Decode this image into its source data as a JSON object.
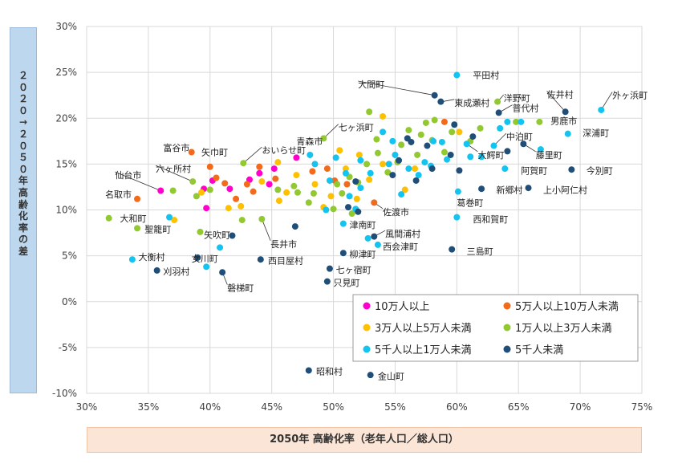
{
  "chart_data": {
    "type": "scatter",
    "xlabel": "2050年 高齢化率（老年人口／総人口）",
    "ylabel": "２０２０→２０５０年 高齢化率の差",
    "xlim": [
      0.3,
      0.75
    ],
    "ylim": [
      -0.1,
      0.3
    ],
    "x_ticks": [
      0.3,
      0.35,
      0.4,
      0.45,
      0.5,
      0.55,
      0.6,
      0.65,
      0.7,
      0.75
    ],
    "y_ticks": [
      -0.1,
      -0.05,
      0.0,
      0.05,
      0.1,
      0.15,
      0.2,
      0.25,
      0.3
    ],
    "x_tick_labels": [
      "30%",
      "35%",
      "40%",
      "45%",
      "50%",
      "55%",
      "60%",
      "65%",
      "70%",
      "75%"
    ],
    "y_tick_labels": [
      "-10%",
      "-5%",
      "0%",
      "5%",
      "10%",
      "15%",
      "20%",
      "25%",
      "30%"
    ],
    "grid": "horizontal and vertical",
    "legend_position": "lower-right inside plot",
    "series": [
      {
        "name": "10万人以上",
        "color": "#ff00cc",
        "points": [
          [
            0.36,
            0.121
          ],
          [
            0.397,
            0.102
          ],
          [
            0.432,
            0.133
          ],
          [
            0.44,
            0.14
          ],
          [
            0.452,
            0.145
          ],
          [
            0.448,
            0.128
          ],
          [
            0.402,
            0.132
          ],
          [
            0.416,
            0.123
          ],
          [
            0.395,
            0.123
          ],
          [
            0.47,
            0.157
          ]
        ]
      },
      {
        "name": "5万人以上10万人未満",
        "color": "#f26a1b",
        "points": [
          [
            0.341,
            0.112
          ],
          [
            0.385,
            0.163
          ],
          [
            0.4,
            0.147
          ],
          [
            0.405,
            0.135
          ],
          [
            0.412,
            0.129
          ],
          [
            0.44,
            0.147
          ],
          [
            0.453,
            0.134
          ],
          [
            0.435,
            0.12
          ],
          [
            0.483,
            0.142
          ],
          [
            0.495,
            0.145
          ],
          [
            0.501,
            0.132
          ],
          [
            0.511,
            0.128
          ],
          [
            0.533,
            0.108
          ],
          [
            0.59,
            0.196
          ],
          [
            0.43,
            0.128
          ],
          [
            0.421,
            0.112
          ]
        ]
      },
      {
        "name": "3万人以上5万人未満",
        "color": "#ffc000",
        "points": [
          [
            0.371,
            0.089
          ],
          [
            0.393,
            0.119
          ],
          [
            0.425,
            0.104
          ],
          [
            0.442,
            0.131
          ],
          [
            0.455,
            0.152
          ],
          [
            0.47,
            0.138
          ],
          [
            0.485,
            0.128
          ],
          [
            0.498,
            0.115
          ],
          [
            0.505,
            0.165
          ],
          [
            0.51,
            0.145
          ],
          [
            0.521,
            0.16
          ],
          [
            0.529,
            0.133
          ],
          [
            0.54,
            0.202
          ],
          [
            0.54,
            0.15
          ],
          [
            0.558,
            0.122
          ],
          [
            0.566,
            0.145
          ],
          [
            0.602,
            0.185
          ],
          [
            0.415,
            0.102
          ],
          [
            0.462,
            0.119
          ],
          [
            0.492,
            0.103
          ],
          [
            0.519,
            0.112
          ],
          [
            0.456,
            0.11
          ]
        ]
      },
      {
        "name": "1万人以上3万人未満",
        "color": "#92c830",
        "points": [
          [
            0.318,
            0.091
          ],
          [
            0.341,
            0.08
          ],
          [
            0.37,
            0.121
          ],
          [
            0.386,
            0.131
          ],
          [
            0.389,
            0.115
          ],
          [
            0.4,
            0.122
          ],
          [
            0.392,
            0.076
          ],
          [
            0.426,
            0.089
          ],
          [
            0.442,
            0.09
          ],
          [
            0.427,
            0.151
          ],
          [
            0.455,
            0.122
          ],
          [
            0.468,
            0.126
          ],
          [
            0.48,
            0.108
          ],
          [
            0.492,
            0.178
          ],
          [
            0.5,
            0.101
          ],
          [
            0.507,
            0.118
          ],
          [
            0.513,
            0.136
          ],
          [
            0.52,
            0.13
          ],
          [
            0.527,
            0.15
          ],
          [
            0.529,
            0.207
          ],
          [
            0.536,
            0.162
          ],
          [
            0.544,
            0.141
          ],
          [
            0.552,
            0.152
          ],
          [
            0.555,
            0.171
          ],
          [
            0.561,
            0.187
          ],
          [
            0.568,
            0.16
          ],
          [
            0.571,
            0.182
          ],
          [
            0.575,
            0.195
          ],
          [
            0.582,
            0.198
          ],
          [
            0.59,
            0.163
          ],
          [
            0.596,
            0.185
          ],
          [
            0.611,
            0.175
          ],
          [
            0.619,
            0.189
          ],
          [
            0.633,
            0.218
          ],
          [
            0.648,
            0.196
          ],
          [
            0.667,
            0.196
          ],
          [
            0.515,
            0.096
          ],
          [
            0.535,
            0.177
          ],
          [
            0.58,
            0.176
          ],
          [
            0.484,
            0.118
          ],
          [
            0.471,
            0.119
          ],
          [
            0.503,
            0.128
          ]
        ]
      },
      {
        "name": "5千人以上1万人未満",
        "color": "#13c3f0",
        "points": [
          [
            0.337,
            0.046
          ],
          [
            0.367,
            0.092
          ],
          [
            0.397,
            0.038
          ],
          [
            0.408,
            0.059
          ],
          [
            0.481,
            0.16
          ],
          [
            0.494,
            0.1
          ],
          [
            0.508,
            0.085
          ],
          [
            0.513,
            0.115
          ],
          [
            0.518,
            0.101
          ],
          [
            0.522,
            0.124
          ],
          [
            0.528,
            0.069
          ],
          [
            0.536,
            0.062
          ],
          [
            0.54,
            0.185
          ],
          [
            0.548,
            0.175
          ],
          [
            0.555,
            0.117
          ],
          [
            0.561,
            0.145
          ],
          [
            0.569,
            0.138
          ],
          [
            0.574,
            0.152
          ],
          [
            0.579,
            0.148
          ],
          [
            0.581,
            0.175
          ],
          [
            0.588,
            0.174
          ],
          [
            0.592,
            0.155
          ],
          [
            0.6,
            0.247
          ],
          [
            0.601,
            0.12
          ],
          [
            0.6,
            0.092
          ],
          [
            0.608,
            0.172
          ],
          [
            0.611,
            0.158
          ],
          [
            0.62,
            0.158
          ],
          [
            0.63,
            0.17
          ],
          [
            0.635,
            0.189
          ],
          [
            0.639,
            0.145
          ],
          [
            0.641,
            0.196
          ],
          [
            0.652,
            0.196
          ],
          [
            0.668,
            0.166
          ],
          [
            0.69,
            0.183
          ],
          [
            0.717,
            0.209
          ],
          [
            0.485,
            0.15
          ],
          [
            0.51,
            0.14
          ],
          [
            0.53,
            0.14
          ],
          [
            0.55,
            0.16
          ],
          [
            0.502,
            0.157
          ],
          [
            0.522,
            0.154
          ],
          [
            0.497,
            0.132
          ],
          [
            0.545,
            0.15
          ]
        ]
      },
      {
        "name": "5千人未満",
        "color": "#1f4e79",
        "points": [
          [
            0.357,
            0.034
          ],
          [
            0.39,
            0.048
          ],
          [
            0.41,
            0.032
          ],
          [
            0.418,
            0.072
          ],
          [
            0.441,
            0.046
          ],
          [
            0.469,
            0.082
          ],
          [
            0.48,
            -0.075
          ],
          [
            0.495,
            0.022
          ],
          [
            0.497,
            0.036
          ],
          [
            0.508,
            0.053
          ],
          [
            0.518,
            0.131
          ],
          [
            0.53,
            -0.08
          ],
          [
            0.533,
            0.071
          ],
          [
            0.548,
            0.138
          ],
          [
            0.553,
            0.154
          ],
          [
            0.56,
            0.178
          ],
          [
            0.563,
            0.174
          ],
          [
            0.567,
            0.132
          ],
          [
            0.58,
            0.145
          ],
          [
            0.582,
            0.225
          ],
          [
            0.587,
            0.218
          ],
          [
            0.595,
            0.16
          ],
          [
            0.596,
            0.057
          ],
          [
            0.602,
            0.143
          ],
          [
            0.613,
            0.18
          ],
          [
            0.62,
            0.123
          ],
          [
            0.634,
            0.206
          ],
          [
            0.641,
            0.164
          ],
          [
            0.654,
            0.172
          ],
          [
            0.658,
            0.124
          ],
          [
            0.688,
            0.207
          ],
          [
            0.693,
            0.144
          ],
          [
            0.598,
            0.193
          ],
          [
            0.512,
            0.103
          ],
          [
            0.576,
            0.17
          ],
          [
            0.52,
            0.098
          ]
        ]
      }
    ],
    "annotations": [
      {
        "text": "平田村",
        "x": 0.6,
        "y": 0.247,
        "lx": 0.613,
        "ly": 0.247,
        "leader": false
      },
      {
        "text": "大間町",
        "x": 0.582,
        "y": 0.225,
        "lx": 0.52,
        "ly": 0.237,
        "leader": true
      },
      {
        "text": "東成瀬村",
        "x": 0.588,
        "y": 0.218,
        "lx": 0.598,
        "ly": 0.217,
        "leader": true
      },
      {
        "text": "洋野町",
        "x": 0.633,
        "y": 0.218,
        "lx": 0.638,
        "ly": 0.222,
        "leader": true
      },
      {
        "text": "普代村",
        "x": 0.634,
        "y": 0.206,
        "lx": 0.645,
        "ly": 0.211,
        "leader": true
      },
      {
        "text": "佐井村",
        "x": 0.688,
        "y": 0.207,
        "lx": 0.673,
        "ly": 0.226,
        "leader": true
      },
      {
        "text": "外ヶ浜町",
        "x": 0.717,
        "y": 0.209,
        "lx": 0.726,
        "ly": 0.225,
        "leader": true
      },
      {
        "text": "男鹿市",
        "x": 0.667,
        "y": 0.196,
        "lx": 0.676,
        "ly": 0.197,
        "leader": false
      },
      {
        "text": "深浦町",
        "x": 0.69,
        "y": 0.183,
        "lx": 0.702,
        "ly": 0.184,
        "leader": false
      },
      {
        "text": "中泊町",
        "x": 0.63,
        "y": 0.17,
        "lx": 0.64,
        "ly": 0.18,
        "leader": true
      },
      {
        "text": "大鰐町",
        "x": 0.608,
        "y": 0.172,
        "lx": 0.617,
        "ly": 0.16,
        "leader": true
      },
      {
        "text": "藤里町",
        "x": 0.654,
        "y": 0.172,
        "lx": 0.664,
        "ly": 0.16,
        "leader": true
      },
      {
        "text": "阿賀町",
        "x": 0.639,
        "y": 0.145,
        "lx": 0.652,
        "ly": 0.143,
        "leader": false
      },
      {
        "text": "今別町",
        "x": 0.693,
        "y": 0.144,
        "lx": 0.705,
        "ly": 0.143,
        "leader": false
      },
      {
        "text": "新郷村",
        "x": 0.62,
        "y": 0.123,
        "lx": 0.632,
        "ly": 0.122,
        "leader": false
      },
      {
        "text": "上小阿仁村",
        "x": 0.658,
        "y": 0.124,
        "lx": 0.67,
        "ly": 0.122,
        "leader": false
      },
      {
        "text": "葛巻町",
        "x": 0.601,
        "y": 0.12,
        "lx": 0.6,
        "ly": 0.108,
        "leader": false
      },
      {
        "text": "西和賀町",
        "x": 0.6,
        "y": 0.092,
        "lx": 0.613,
        "ly": 0.09,
        "leader": false
      },
      {
        "text": "三島町",
        "x": 0.596,
        "y": 0.057,
        "lx": 0.608,
        "ly": 0.055,
        "leader": false
      },
      {
        "text": "七ヶ浜町",
        "x": 0.492,
        "y": 0.178,
        "lx": 0.504,
        "ly": 0.19,
        "leader": true
      },
      {
        "text": "青森市",
        "x": 0.47,
        "y": 0.157,
        "lx": 0.47,
        "ly": 0.175,
        "leader": false
      },
      {
        "text": "おいらせ町",
        "x": 0.427,
        "y": 0.151,
        "lx": 0.442,
        "ly": 0.165,
        "leader": true
      },
      {
        "text": "矢巾町",
        "x": 0.4,
        "y": 0.147,
        "lx": 0.393,
        "ly": 0.163,
        "leader": false
      },
      {
        "text": "富谷市",
        "x": 0.385,
        "y": 0.163,
        "lx": 0.362,
        "ly": 0.168,
        "leader": false
      },
      {
        "text": "六ヶ所村",
        "x": 0.386,
        "y": 0.131,
        "lx": 0.356,
        "ly": 0.145,
        "leader": true
      },
      {
        "text": "仙台市",
        "x": 0.36,
        "y": 0.121,
        "lx": 0.323,
        "ly": 0.138,
        "leader": true
      },
      {
        "text": "名取市",
        "x": 0.341,
        "y": 0.112,
        "lx": 0.315,
        "ly": 0.117,
        "leader": false
      },
      {
        "text": "大和町",
        "x": 0.318,
        "y": 0.091,
        "lx": 0.327,
        "ly": 0.091,
        "leader": false
      },
      {
        "text": "聖籠町",
        "x": 0.341,
        "y": 0.08,
        "lx": 0.347,
        "ly": 0.079,
        "leader": false
      },
      {
        "text": "矢吹町",
        "x": 0.392,
        "y": 0.076,
        "lx": 0.395,
        "ly": 0.073,
        "leader": false
      },
      {
        "text": "大衡村",
        "x": 0.337,
        "y": 0.046,
        "lx": 0.342,
        "ly": 0.049,
        "leader": false
      },
      {
        "text": "刈羽村",
        "x": 0.357,
        "y": 0.034,
        "lx": 0.362,
        "ly": 0.033,
        "leader": false
      },
      {
        "text": "女川町",
        "x": 0.397,
        "y": 0.038,
        "lx": 0.385,
        "ly": 0.047,
        "leader": false
      },
      {
        "text": "磐梯町",
        "x": 0.41,
        "y": 0.032,
        "lx": 0.414,
        "ly": 0.015,
        "leader": true
      },
      {
        "text": "長井市",
        "x": 0.442,
        "y": 0.09,
        "lx": 0.449,
        "ly": 0.063,
        "leader": true
      },
      {
        "text": "西目屋村",
        "x": 0.441,
        "y": 0.046,
        "lx": 0.447,
        "ly": 0.045,
        "leader": false
      },
      {
        "text": "佐渡市",
        "x": 0.533,
        "y": 0.108,
        "lx": 0.54,
        "ly": 0.098,
        "leader": true
      },
      {
        "text": "津南町",
        "x": 0.508,
        "y": 0.085,
        "lx": 0.513,
        "ly": 0.084,
        "leader": false
      },
      {
        "text": "風間浦村",
        "x": 0.533,
        "y": 0.071,
        "lx": 0.542,
        "ly": 0.074,
        "leader": true
      },
      {
        "text": "西会津町",
        "x": 0.536,
        "y": 0.062,
        "lx": 0.54,
        "ly": 0.06,
        "leader": false
      },
      {
        "text": "柳津町",
        "x": 0.508,
        "y": 0.053,
        "lx": 0.513,
        "ly": 0.052,
        "leader": false
      },
      {
        "text": "七ヶ宿町",
        "x": 0.497,
        "y": 0.036,
        "lx": 0.502,
        "ly": 0.035,
        "leader": false
      },
      {
        "text": "只見町",
        "x": 0.495,
        "y": 0.022,
        "lx": 0.5,
        "ly": 0.021,
        "leader": false
      },
      {
        "text": "昭和村",
        "x": 0.48,
        "y": -0.075,
        "lx": 0.486,
        "ly": -0.076,
        "leader": false
      },
      {
        "text": "金山町",
        "x": 0.53,
        "y": -0.08,
        "lx": 0.536,
        "ly": -0.081,
        "leader": false
      }
    ]
  }
}
